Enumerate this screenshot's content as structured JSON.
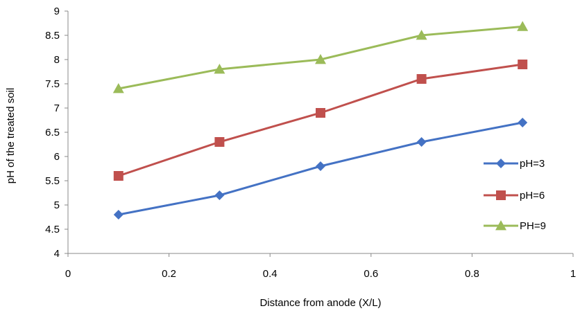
{
  "chart_data": {
    "type": "line",
    "title": "",
    "xlabel": "Distance from anode (X/L)",
    "ylabel": "pH of the treated soil",
    "xlim": [
      0,
      1
    ],
    "ylim": [
      4,
      9
    ],
    "x_ticks": [
      "0",
      "0.2",
      "0.4",
      "0.6",
      "0.8",
      "1"
    ],
    "y_ticks": [
      "4",
      "4.5",
      "5",
      "5.5",
      "6",
      "6.5",
      "7",
      "7.5",
      "8",
      "8.5",
      "9"
    ],
    "grid": false,
    "legend_position": "right",
    "x": [
      0.1,
      0.3,
      0.5,
      0.7,
      0.9
    ],
    "series": [
      {
        "name": "pH=3",
        "values": [
          4.8,
          5.2,
          5.8,
          6.3,
          6.7
        ],
        "color": "#4472C4",
        "marker": "diamond"
      },
      {
        "name": "pH=6",
        "values": [
          5.6,
          6.3,
          6.9,
          7.6,
          7.9
        ],
        "color": "#C0504D",
        "marker": "square"
      },
      {
        "name": "PH=9",
        "values": [
          7.4,
          7.8,
          8.0,
          8.5,
          8.68
        ],
        "color": "#9BBB59",
        "marker": "triangle"
      }
    ]
  }
}
